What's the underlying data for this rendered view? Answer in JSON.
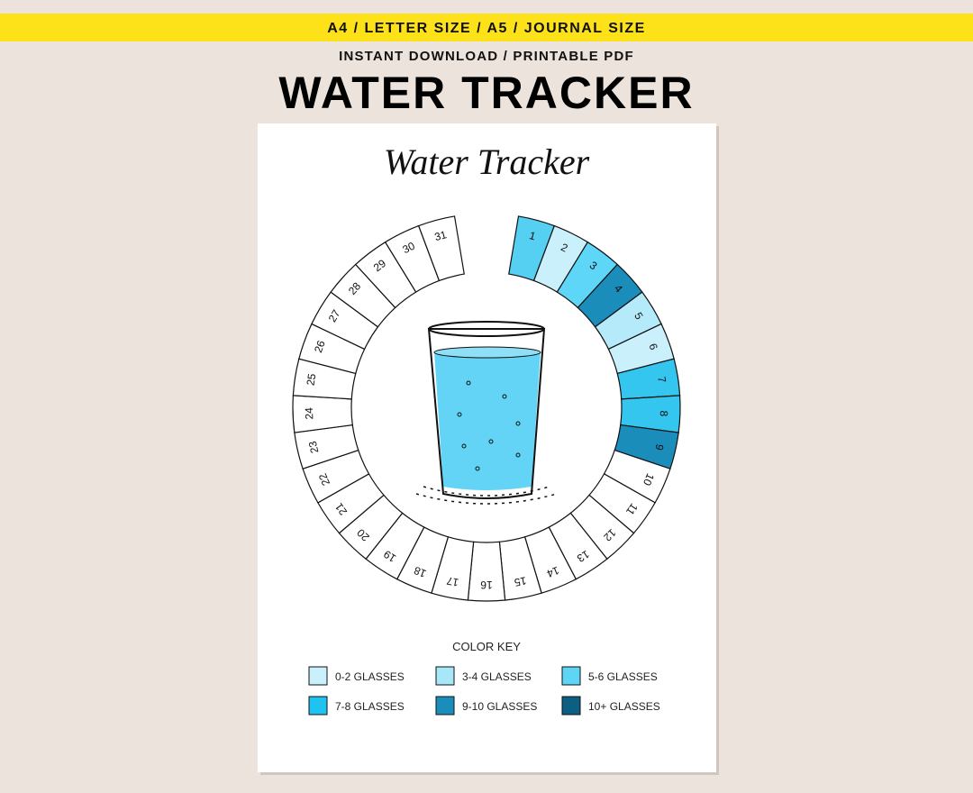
{
  "banner": "A4 / LETTER SIZE / A5 / JOURNAL SIZE",
  "subtitle": "INSTANT DOWNLOAD / PRINTABLE PDF",
  "headline": "WATER TRACKER",
  "sheet": {
    "title": "Water Tracker",
    "ring": {
      "days": [
        {
          "label": "1",
          "color": "#56d0f2"
        },
        {
          "label": "2",
          "color": "#c9f0fb"
        },
        {
          "label": "3",
          "color": "#5dd6f7"
        },
        {
          "label": "4",
          "color": "#1b8dbb"
        },
        {
          "label": "5",
          "color": "#b4eafa"
        },
        {
          "label": "6",
          "color": "#c9f0fb"
        },
        {
          "label": "7",
          "color": "#34c6ee"
        },
        {
          "label": "8",
          "color": "#34c6ee"
        },
        {
          "label": "9",
          "color": "#1b8dbb"
        },
        {
          "label": "10"
        },
        {
          "label": "11"
        },
        {
          "label": "12"
        },
        {
          "label": "13"
        },
        {
          "label": "14"
        },
        {
          "label": "15"
        },
        {
          "label": "16"
        },
        {
          "label": "17"
        },
        {
          "label": "18"
        },
        {
          "label": "19"
        },
        {
          "label": "20"
        },
        {
          "label": "21"
        },
        {
          "label": "22"
        },
        {
          "label": "23"
        },
        {
          "label": "24"
        },
        {
          "label": "25"
        },
        {
          "label": "26"
        },
        {
          "label": "27"
        },
        {
          "label": "28"
        },
        {
          "label": "29"
        },
        {
          "label": "30"
        },
        {
          "label": "31"
        }
      ]
    },
    "color_key": {
      "title": "COLOR KEY",
      "items": [
        {
          "label": "0-2 GLASSES",
          "color": "#c9f0fb"
        },
        {
          "label": "3-4 GLASSES",
          "color": "#a6e8fa"
        },
        {
          "label": "5-6 GLASSES",
          "color": "#5fd5f5"
        },
        {
          "label": "7-8 GLASSES",
          "color": "#1ec4ef"
        },
        {
          "label": "9-10 GLASSES",
          "color": "#1b8dbb"
        },
        {
          "label": "10+ GLASSES",
          "color": "#0c5f82"
        }
      ]
    }
  }
}
